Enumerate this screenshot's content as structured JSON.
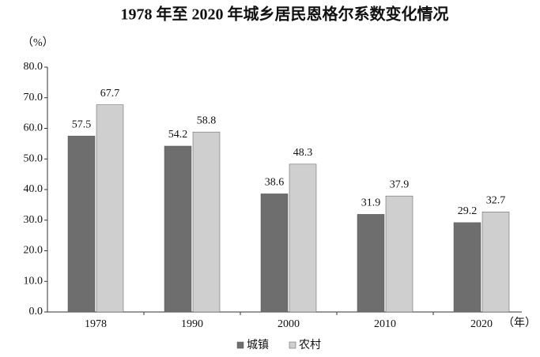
{
  "chart_data": {
    "type": "bar",
    "title": "1978 年至 2020 年城乡居民恩格尔系数变化情况",
    "y_label": "（%）",
    "x_label": "（年）",
    "categories": [
      "1978",
      "1990",
      "2000",
      "2010",
      "2020"
    ],
    "series": [
      {
        "name": "城镇",
        "color": "#6e6e6e",
        "values": [
          57.5,
          54.2,
          38.6,
          31.9,
          29.2
        ]
      },
      {
        "name": "农村",
        "color": "#cfcfcf",
        "values": [
          67.7,
          58.8,
          48.3,
          37.9,
          32.7
        ]
      }
    ],
    "ylim": [
      0,
      80
    ],
    "yticks": [
      {
        "value": 0,
        "label": "0.0"
      },
      {
        "value": 10,
        "label": "10.0"
      },
      {
        "value": 20,
        "label": "20.0"
      },
      {
        "value": 30,
        "label": "30.0"
      },
      {
        "value": 40,
        "label": "40.0"
      },
      {
        "value": 50,
        "label": "50.0"
      },
      {
        "value": 60,
        "label": "60.0"
      },
      {
        "value": 70,
        "label": "70.0"
      },
      {
        "value": 80,
        "label": "80.0"
      }
    ],
    "grid": false,
    "legend": "bottom"
  }
}
